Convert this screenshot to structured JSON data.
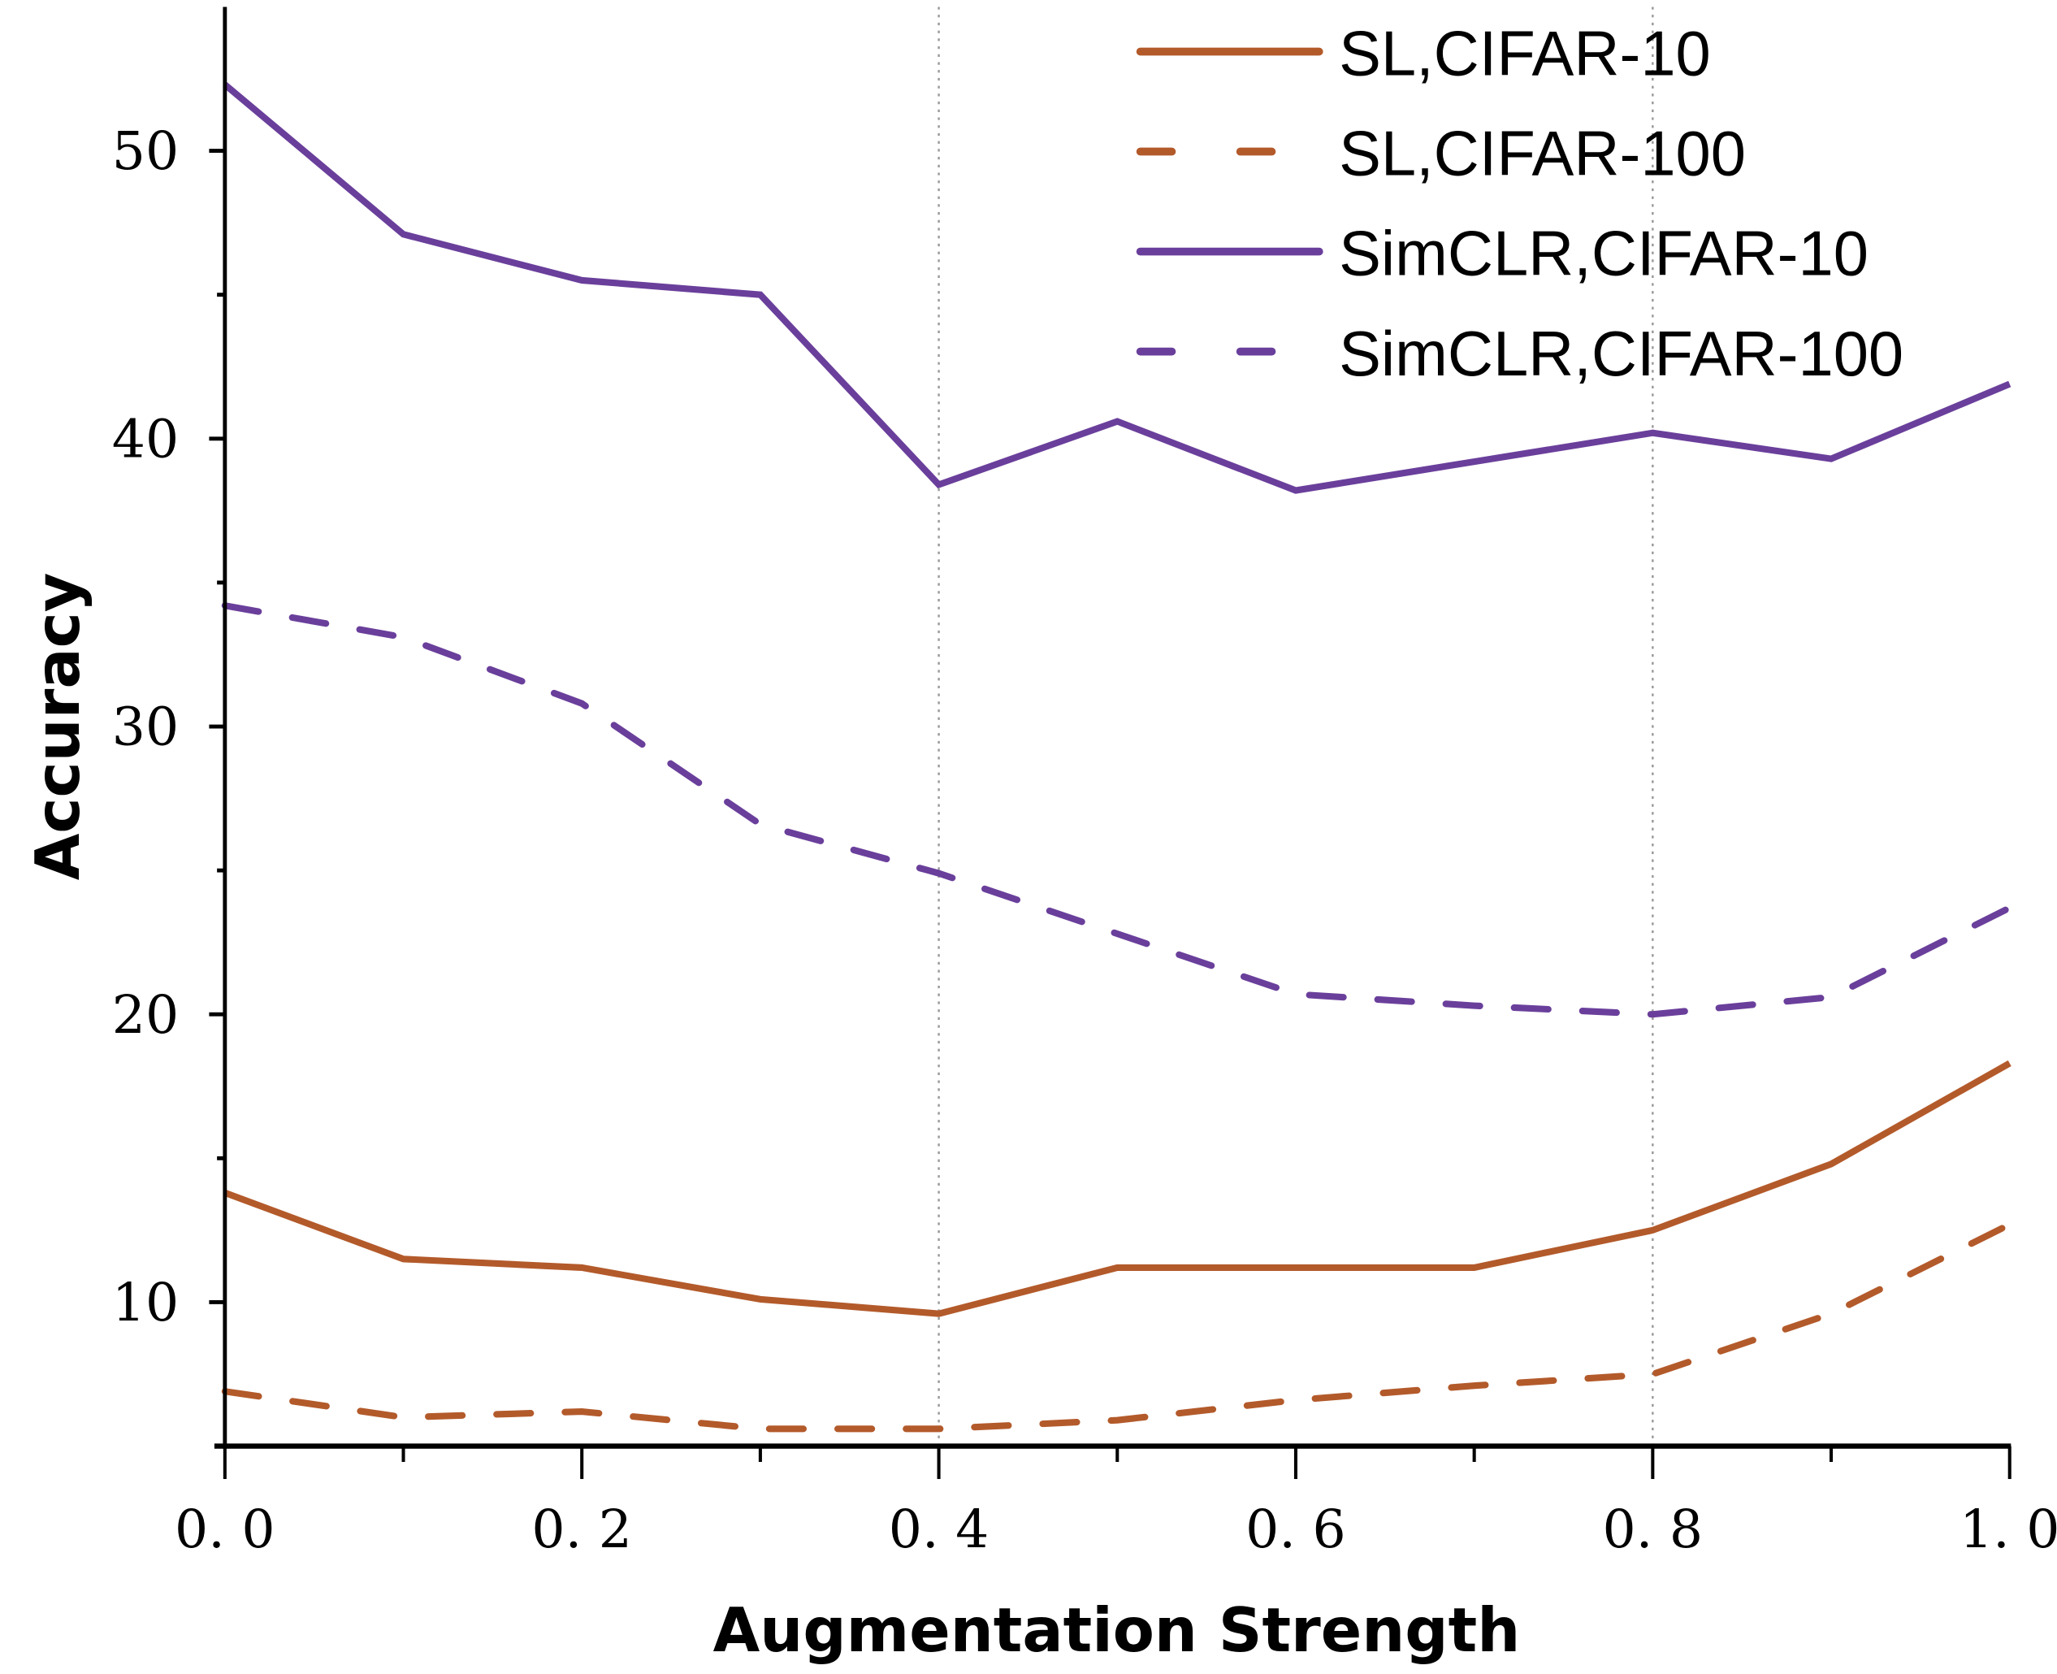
{
  "chart_data": {
    "type": "line",
    "title": "",
    "xlabel": "Augmentation Strength",
    "ylabel": "Accuracy",
    "xlim": [
      0.0,
      1.0
    ],
    "ylim": [
      5,
      55
    ],
    "x": [
      0.0,
      0.1,
      0.2,
      0.3,
      0.4,
      0.5,
      0.6,
      0.7,
      0.8,
      0.9,
      1.0
    ],
    "x_ticks": [
      0.0,
      0.2,
      0.4,
      0.6,
      0.8,
      1.0
    ],
    "x_tick_labels": [
      "0. 0",
      "0. 2",
      "0. 4",
      "0. 6",
      "0. 8",
      "1. 0"
    ],
    "x_minor_ticks": [
      0.1,
      0.3,
      0.5,
      0.7,
      0.9
    ],
    "y_ticks": [
      10,
      20,
      30,
      40,
      50
    ],
    "y_tick_labels": [
      "10",
      "20",
      "30",
      "40",
      "50"
    ],
    "y_minor_ticks": [
      15,
      25,
      35,
      45
    ],
    "vertical_gridlines": [
      0.4,
      0.8
    ],
    "grid": "dotted vertical lines at 0.4 and 0.8",
    "legend_position": "top-right",
    "series": [
      {
        "name": "SL,CIFAR-10",
        "color": "#B35A2B",
        "style": "solid",
        "values": [
          13.8,
          11.5,
          11.2,
          10.1,
          9.6,
          11.2,
          11.2,
          11.2,
          12.5,
          14.8,
          18.3
        ]
      },
      {
        "name": "SL,CIFAR-100",
        "color": "#B35A2B",
        "style": "dashed",
        "values": [
          6.9,
          6.0,
          6.2,
          5.6,
          5.6,
          5.9,
          6.6,
          7.1,
          7.5,
          9.6,
          12.7
        ]
      },
      {
        "name": "SimCLR,CIFAR-10",
        "color": "#6A3F9B",
        "style": "solid",
        "values": [
          52.3,
          47.1,
          45.5,
          45.0,
          38.4,
          40.6,
          38.2,
          39.2,
          40.2,
          39.3,
          41.9
        ]
      },
      {
        "name": "SimCLR,CIFAR-100",
        "color": "#6A3F9B",
        "style": "dashed",
        "values": [
          34.2,
          33.1,
          30.8,
          26.6,
          24.9,
          22.8,
          20.7,
          20.3,
          20.0,
          20.6,
          23.7
        ]
      }
    ]
  }
}
